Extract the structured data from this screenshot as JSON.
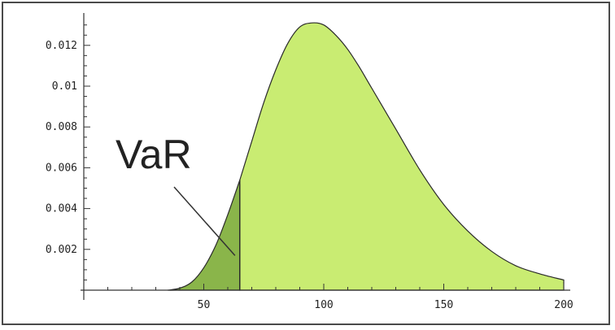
{
  "chart_data": {
    "type": "area",
    "title": "",
    "xlabel": "",
    "ylabel": "",
    "xlim": [
      0,
      200
    ],
    "ylim": [
      0,
      0.013
    ],
    "x_ticks": [
      50,
      100,
      150,
      200
    ],
    "x_tick_labels": [
      "50",
      "100",
      "150",
      "200"
    ],
    "y_ticks": [
      0.002,
      0.004,
      0.006,
      0.008,
      0.01,
      0.012
    ],
    "y_tick_labels": [
      "0.002",
      "0.004",
      "0.006",
      "0.008",
      "0.01",
      "0.012"
    ],
    "grid": false,
    "var_threshold": 65,
    "series": [
      {
        "x": [
          35,
          40,
          45,
          50,
          55,
          60,
          65,
          70,
          75,
          80,
          85,
          90,
          95,
          100,
          105,
          110,
          115,
          120,
          130,
          140,
          150,
          160,
          170,
          180,
          190,
          200
        ],
        "y": [
          0.0,
          0.0001,
          0.0004,
          0.0011,
          0.0022,
          0.0037,
          0.0054,
          0.0073,
          0.0092,
          0.0108,
          0.0121,
          0.0129,
          0.0131,
          0.013,
          0.0125,
          0.0118,
          0.0109,
          0.0099,
          0.0079,
          0.0059,
          0.0042,
          0.0029,
          0.0019,
          0.0012,
          0.0008,
          0.0005
        ]
      }
    ],
    "colors": {
      "tail_fill": "#8ab54a",
      "body_fill": "#c9ec72",
      "outline": "#2a2a2a",
      "axis": "#333333"
    },
    "annotation": {
      "text": "VaR",
      "points_to_x": 63,
      "points_to_y": 0.0017
    }
  }
}
